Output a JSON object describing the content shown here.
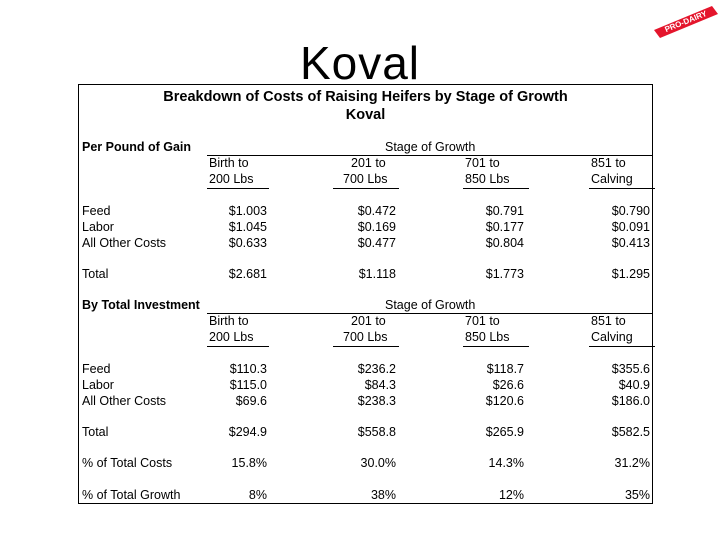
{
  "slide": {
    "title": "Koval"
  },
  "logo": {
    "text": "PRO-DAIRY",
    "color": "#e4152c"
  },
  "table": {
    "title_line1": "Breakdown of Costs of Raising Heifers by Stage of Growth",
    "title_line2": "Koval",
    "stage_header": "Stage of Growth",
    "stages": [
      {
        "line1": "Birth to",
        "line2": "200 Lbs"
      },
      {
        "line1": "201 to",
        "line2": "700 Lbs"
      },
      {
        "line1": "701 to",
        "line2": "850 Lbs"
      },
      {
        "line1": "851 to",
        "line2": "Calving"
      }
    ],
    "sections": [
      {
        "heading": "Per Pound of Gain",
        "rows": [
          {
            "label": "Feed",
            "values": [
              "$1.003",
              "$0.472",
              "$0.791",
              "$0.790"
            ]
          },
          {
            "label": "Labor",
            "values": [
              "$1.045",
              "$0.169",
              "$0.177",
              "$0.091"
            ]
          },
          {
            "label": "All Other Costs",
            "values": [
              "$0.633",
              "$0.477",
              "$0.804",
              "$0.413"
            ]
          },
          {
            "label": "Total",
            "values": [
              "$2.681",
              "$1.118",
              "$1.773",
              "$1.295"
            ]
          }
        ]
      },
      {
        "heading": "By Total Investment",
        "rows": [
          {
            "label": "Feed",
            "values": [
              "$110.3",
              "$236.2",
              "$118.7",
              "$355.6"
            ]
          },
          {
            "label": "Labor",
            "values": [
              "$115.0",
              "$84.3",
              "$26.6",
              "$40.9"
            ]
          },
          {
            "label": "All Other Costs",
            "values": [
              "$69.6",
              "$238.3",
              "$120.6",
              "$186.0"
            ]
          },
          {
            "label": "Total",
            "values": [
              "$294.9",
              "$558.8",
              "$265.9",
              "$582.5"
            ]
          },
          {
            "label": "% of Total Costs",
            "values": [
              "15.8%",
              "30.0%",
              "14.3%",
              "31.2%"
            ]
          },
          {
            "label": "% of Total Growth",
            "values": [
              "8%",
              "38%",
              "12%",
              "35%"
            ]
          }
        ]
      }
    ]
  }
}
